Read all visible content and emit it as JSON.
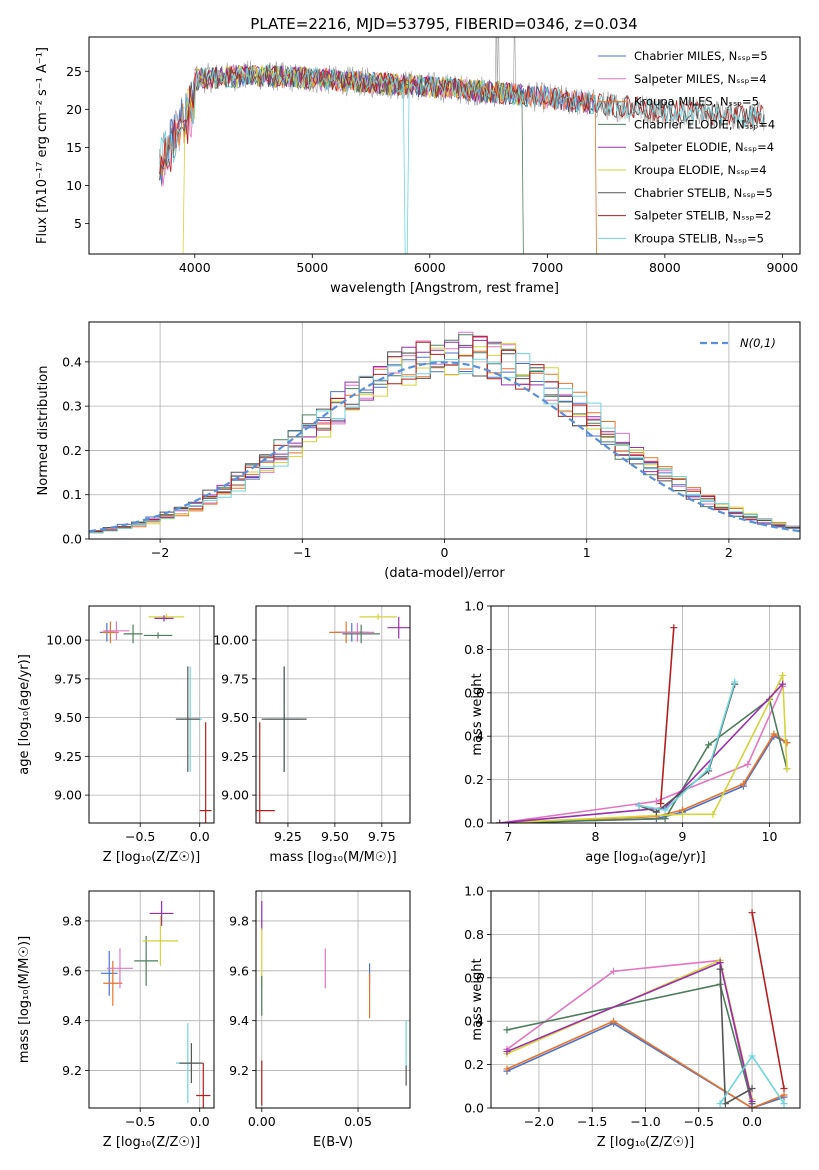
{
  "figure": {
    "title": "PLATE=2216, MJD=53795, FIBERID=0346, z=0.034"
  },
  "chart_data": [
    {
      "id": "spectrum",
      "type": "line",
      "xlabel": "wavelength [Angstrom, rest frame]",
      "ylabel": "Flux [fλ10⁻¹⁷ erg cm⁻² s⁻¹ A⁻¹]",
      "xlim": [
        3100,
        9150
      ],
      "ylim": [
        1,
        29.5
      ],
      "xticks": [
        4000,
        5000,
        6000,
        7000,
        8000,
        9000
      ],
      "yticks": [
        5,
        10,
        15,
        20,
        25
      ],
      "legend_position": "top-right",
      "observed_color": "#aaaaaa",
      "series": [
        {
          "name": "Chabrier MILES, N_SSP=5",
          "color": "#4c72d0",
          "range": [
            3700,
            7400
          ]
        },
        {
          "name": "Salpeter MILES, N_SSP=4",
          "color": "#e377c2",
          "range": [
            3700,
            7400
          ]
        },
        {
          "name": "Kroupa MILES, N_SSP=5",
          "color": "#e8742a",
          "range": [
            3700,
            7430
          ]
        },
        {
          "name": "Chabrier ELODIE, N_SSP=4",
          "color": "#4e7d5e",
          "range": [
            4000,
            6800
          ]
        },
        {
          "name": "Salpeter ELODIE, N_SSP=4",
          "color": "#9b2fb0",
          "range": [
            4000,
            6800
          ]
        },
        {
          "name": "Kroupa ELODIE, N_SSP=4",
          "color": "#d4d43c",
          "range": [
            3900,
            6800
          ]
        },
        {
          "name": "Chabrier STELIB, N_SSP=5",
          "color": "#555555",
          "range": [
            3700,
            8850
          ]
        },
        {
          "name": "Salpeter STELIB, N_SSP=2",
          "color": "#b41f1f",
          "range": [
            3700,
            8850
          ]
        },
        {
          "name": "Kroupa STELIB, N_SSP=5",
          "color": "#6fd6dc",
          "range": [
            3700,
            8850
          ]
        }
      ],
      "continuum": [
        [
          3700,
          16
        ],
        [
          4000,
          24
        ],
        [
          4500,
          24.5
        ],
        [
          5000,
          24
        ],
        [
          5500,
          23.5
        ],
        [
          6000,
          23
        ],
        [
          6500,
          22.3
        ],
        [
          7000,
          21.5
        ],
        [
          7500,
          20.5
        ],
        [
          8000,
          19.8
        ],
        [
          8500,
          19.3
        ],
        [
          8850,
          19
        ]
      ]
    },
    {
      "id": "residuals",
      "type": "histogram",
      "xlabel": "(data-model)/error",
      "ylabel": "Normed distribution",
      "xlim": [
        -2.5,
        2.5
      ],
      "ylim": [
        0,
        0.49
      ],
      "xticks": [
        -2,
        -1,
        0,
        1,
        2
      ],
      "yticks": [
        0.0,
        0.1,
        0.2,
        0.3,
        0.4
      ],
      "grid": true,
      "legend_position": "top-right",
      "reference": {
        "name": "N(0,1)",
        "color": "#5b8fd6"
      },
      "bin_width": 0.1
    },
    {
      "id": "age-vs-z",
      "type": "errorbar",
      "xlabel": "Z [log₁₀(Z/Z☉)]",
      "ylabel": "age  [log₁₀(age/yr)]",
      "xlim": [
        -0.93,
        0.12
      ],
      "ylim": [
        8.82,
        10.22
      ],
      "xticks": [
        -0.5,
        0.0
      ],
      "yticks": [
        9.0,
        9.25,
        9.5,
        9.75,
        10.0
      ],
      "grid": true,
      "points": [
        {
          "x": -0.78,
          "y": 10.05,
          "xerr": 0.06,
          "yerr": 0.06,
          "color": "#4c72d0"
        },
        {
          "x": -0.75,
          "y": 10.05,
          "xerr": 0.07,
          "yerr": 0.07,
          "color": "#e8742a"
        },
        {
          "x": -0.7,
          "y": 10.06,
          "xerr": 0.11,
          "yerr": 0.06,
          "color": "#e377c2"
        },
        {
          "x": -0.56,
          "y": 10.04,
          "xerr": 0.08,
          "yerr": 0.06,
          "color": "#4e7d5e"
        },
        {
          "x": -0.28,
          "y": 10.15,
          "xerr": 0.15,
          "yerr": 0.02,
          "color": "#d4d43c"
        },
        {
          "x": -0.35,
          "y": 10.03,
          "xerr": 0.12,
          "yerr": 0.02,
          "color": "#4e7d5e"
        },
        {
          "x": -0.3,
          "y": 10.14,
          "xerr": 0.08,
          "yerr": 0.02,
          "color": "#9b2fb0"
        },
        {
          "x": -0.08,
          "y": 9.49,
          "xerr": 0.1,
          "yerr": 0.34,
          "color": "#6fd6dc"
        },
        {
          "x": -0.1,
          "y": 9.49,
          "xerr": 0.1,
          "yerr": 0.34,
          "color": "#555555"
        },
        {
          "x": 0.05,
          "y": 8.9,
          "xerr": 0.05,
          "yerr": 0.57,
          "color": "#b41f1f"
        }
      ]
    },
    {
      "id": "age-vs-mass",
      "type": "errorbar",
      "xlabel": "mass [log₁₀(M/M☉)]",
      "ylabel": "",
      "xlim": [
        9.08,
        9.9
      ],
      "ylim": [
        8.82,
        10.22
      ],
      "xticks": [
        9.25,
        9.5,
        9.75
      ],
      "yticks": [
        9.0,
        9.25,
        9.5,
        9.75,
        10.0
      ],
      "grid": true,
      "points": [
        {
          "x": 9.59,
          "y": 10.05,
          "xerr": 0.09,
          "yerr": 0.06,
          "color": "#4c72d0"
        },
        {
          "x": 9.56,
          "y": 10.05,
          "xerr": 0.09,
          "yerr": 0.07,
          "color": "#e8742a"
        },
        {
          "x": 9.62,
          "y": 10.05,
          "xerr": 0.09,
          "yerr": 0.06,
          "color": "#e377c2"
        },
        {
          "x": 9.64,
          "y": 10.04,
          "xerr": 0.1,
          "yerr": 0.06,
          "color": "#4e7d5e"
        },
        {
          "x": 9.73,
          "y": 10.15,
          "xerr": 0.1,
          "yerr": 0.02,
          "color": "#d4d43c"
        },
        {
          "x": 9.84,
          "y": 10.08,
          "xerr": 0.06,
          "yerr": 0.07,
          "color": "#9b2fb0"
        },
        {
          "x": 9.23,
          "y": 9.49,
          "xerr": 0.1,
          "yerr": 0.34,
          "color": "#6fd6dc"
        },
        {
          "x": 9.23,
          "y": 9.49,
          "xerr": 0.12,
          "yerr": 0.34,
          "color": "#555555"
        },
        {
          "x": 9.1,
          "y": 8.9,
          "xerr": 0.08,
          "yerr": 0.57,
          "color": "#b41f1f"
        }
      ]
    },
    {
      "id": "weight-vs-age",
      "type": "line",
      "xlabel": "age  [log₁₀(age/yr)]",
      "ylabel": "mass weight",
      "xlim": [
        6.8,
        10.35
      ],
      "ylim": [
        0,
        1.0
      ],
      "xticks": [
        7,
        8,
        9,
        10
      ],
      "yticks": [
        0.0,
        0.2,
        0.4,
        0.6,
        0.8,
        1.0
      ],
      "grid": true,
      "series": [
        {
          "color": "#4c72d0",
          "points": [
            [
              6.9,
              0.0
            ],
            [
              8.7,
              0.02
            ],
            [
              9.0,
              0.05
            ],
            [
              9.7,
              0.17
            ],
            [
              10.05,
              0.4
            ],
            [
              10.2,
              0.37
            ]
          ]
        },
        {
          "color": "#e8742a",
          "points": [
            [
              6.9,
              0.0
            ],
            [
              8.7,
              0.03
            ],
            [
              9.0,
              0.06
            ],
            [
              9.7,
              0.18
            ],
            [
              10.05,
              0.41
            ],
            [
              10.2,
              0.37
            ]
          ]
        },
        {
          "color": "#e377c2",
          "points": [
            [
              6.9,
              0.0
            ],
            [
              8.7,
              0.1
            ],
            [
              9.75,
              0.27
            ],
            [
              10.15,
              0.63
            ]
          ]
        },
        {
          "color": "#4e7d5e",
          "points": [
            [
              6.9,
              0.0
            ],
            [
              8.8,
              0.02
            ],
            [
              9.3,
              0.36
            ],
            [
              10.0,
              0.57
            ],
            [
              10.2,
              0.25
            ]
          ]
        },
        {
          "color": "#d4d43c",
          "points": [
            [
              6.9,
              0.0
            ],
            [
              9.0,
              0.04
            ],
            [
              9.35,
              0.04
            ],
            [
              10.15,
              0.68
            ],
            [
              10.2,
              0.25
            ]
          ]
        },
        {
          "color": "#9b2fb0",
          "points": [
            [
              6.9,
              0.0
            ],
            [
              8.8,
              0.07
            ],
            [
              10.15,
              0.64
            ]
          ]
        },
        {
          "color": "#555555",
          "points": [
            [
              8.5,
              0.08
            ],
            [
              8.7,
              0.05
            ],
            [
              9.3,
              0.24
            ],
            [
              9.6,
              0.64
            ]
          ]
        },
        {
          "color": "#b41f1f",
          "points": [
            [
              8.75,
              0.09
            ],
            [
              8.9,
              0.9
            ]
          ]
        },
        {
          "color": "#6fd6dc",
          "points": [
            [
              8.5,
              0.08
            ],
            [
              8.8,
              0.06
            ],
            [
              9.3,
              0.25
            ],
            [
              9.6,
              0.65
            ]
          ]
        }
      ]
    },
    {
      "id": "mass-vs-z",
      "type": "errorbar",
      "xlabel": "Z [log₁₀(Z/Z☉)]",
      "ylabel": "mass [log₁₀(M/M☉)]",
      "xlim": [
        -0.93,
        0.12
      ],
      "ylim": [
        9.05,
        9.92
      ],
      "xticks": [
        -0.5,
        0.0
      ],
      "yticks": [
        9.2,
        9.4,
        9.6,
        9.8
      ],
      "grid": true,
      "points": [
        {
          "x": -0.76,
          "y": 9.59,
          "xerr": 0.07,
          "yerr": 0.09,
          "color": "#4c72d0"
        },
        {
          "x": -0.73,
          "y": 9.55,
          "xerr": 0.08,
          "yerr": 0.09,
          "color": "#e8742a"
        },
        {
          "x": -0.67,
          "y": 9.61,
          "xerr": 0.11,
          "yerr": 0.08,
          "color": "#e377c2"
        },
        {
          "x": -0.45,
          "y": 9.64,
          "xerr": 0.1,
          "yerr": 0.1,
          "color": "#4e7d5e"
        },
        {
          "x": -0.33,
          "y": 9.72,
          "xerr": 0.15,
          "yerr": 0.1,
          "color": "#d4d43c"
        },
        {
          "x": -0.32,
          "y": 9.83,
          "xerr": 0.1,
          "yerr": 0.05,
          "color": "#9b2fb0"
        },
        {
          "x": -0.1,
          "y": 9.23,
          "xerr": 0.1,
          "yerr": 0.16,
          "color": "#6fd6dc"
        },
        {
          "x": -0.07,
          "y": 9.23,
          "xerr": 0.1,
          "yerr": 0.08,
          "color": "#555555"
        },
        {
          "x": 0.03,
          "y": 9.1,
          "xerr": 0.06,
          "yerr": 0.13,
          "color": "#b41f1f"
        }
      ]
    },
    {
      "id": "mass-vs-ebv",
      "type": "errorbar",
      "xlabel": "E(B-V)",
      "ylabel": "",
      "xlim": [
        -0.003,
        0.077
      ],
      "ylim": [
        9.05,
        9.92
      ],
      "xticks": [
        0.0,
        0.05
      ],
      "yticks": [
        9.2,
        9.4,
        9.6,
        9.8
      ],
      "grid": true,
      "points": [
        {
          "x": 0.0,
          "y": 9.82,
          "xerr": 0.0,
          "yerr": 0.06,
          "color": "#9b2fb0"
        },
        {
          "x": 0.0,
          "y": 9.65,
          "xerr": 0.0,
          "yerr": 0.12,
          "color": "#d4d43c"
        },
        {
          "x": 0.0,
          "y": 9.5,
          "xerr": 0.0,
          "yerr": 0.08,
          "color": "#4e7d5e"
        },
        {
          "x": 0.0,
          "y": 9.15,
          "xerr": 0.0,
          "yerr": 0.09,
          "color": "#b41f1f"
        },
        {
          "x": 0.033,
          "y": 9.61,
          "xerr": 0.0,
          "yerr": 0.08,
          "color": "#e377c2"
        },
        {
          "x": 0.056,
          "y": 9.59,
          "xerr": 0.0,
          "yerr": 0.04,
          "color": "#4c72d0"
        },
        {
          "x": 0.056,
          "y": 9.5,
          "xerr": 0.0,
          "yerr": 0.09,
          "color": "#e8742a"
        },
        {
          "x": 0.075,
          "y": 9.3,
          "xerr": 0.0,
          "yerr": 0.1,
          "color": "#6fd6dc"
        },
        {
          "x": 0.075,
          "y": 9.18,
          "xerr": 0.0,
          "yerr": 0.04,
          "color": "#555555"
        }
      ]
    },
    {
      "id": "weight-vs-z",
      "type": "line",
      "xlabel": "Z [log₁₀(Z/Z☉)]",
      "ylabel": "mass weight",
      "xlim": [
        -2.45,
        0.45
      ],
      "ylim": [
        0,
        1.0
      ],
      "xticks": [
        -2.0,
        -1.5,
        -1.0,
        -0.5,
        0.0
      ],
      "yticks": [
        0.0,
        0.2,
        0.4,
        0.6,
        0.8,
        1.0
      ],
      "grid": true,
      "series": [
        {
          "color": "#4c72d0",
          "points": [
            [
              -2.3,
              0.17
            ],
            [
              -1.3,
              0.39
            ],
            [
              0.0,
              0.0
            ],
            [
              0.3,
              0.05
            ]
          ]
        },
        {
          "color": "#e8742a",
          "points": [
            [
              -2.3,
              0.18
            ],
            [
              -1.3,
              0.4
            ],
            [
              0.0,
              0.0
            ],
            [
              0.3,
              0.06
            ]
          ]
        },
        {
          "color": "#e377c2",
          "points": [
            [
              -2.3,
              0.27
            ],
            [
              -1.3,
              0.63
            ],
            [
              -0.3,
              0.68
            ],
            [
              0.0,
              0.0
            ]
          ]
        },
        {
          "color": "#4e7d5e",
          "points": [
            [
              -2.3,
              0.36
            ],
            [
              -0.3,
              0.57
            ],
            [
              0.0,
              0.02
            ]
          ]
        },
        {
          "color": "#d4d43c",
          "points": [
            [
              -2.3,
              0.25
            ],
            [
              -0.3,
              0.68
            ],
            [
              0.0,
              0.04
            ]
          ]
        },
        {
          "color": "#9b2fb0",
          "points": [
            [
              -2.3,
              0.26
            ],
            [
              -0.3,
              0.67
            ],
            [
              0.0,
              0.03
            ]
          ]
        },
        {
          "color": "#555555",
          "points": [
            [
              -0.3,
              0.64
            ],
            [
              -0.25,
              0.02
            ],
            [
              0.0,
              0.09
            ]
          ]
        },
        {
          "color": "#b41f1f",
          "points": [
            [
              0.0,
              0.9
            ],
            [
              0.3,
              0.09
            ]
          ]
        },
        {
          "color": "#6fd6dc",
          "points": [
            [
              -0.3,
              0.02
            ],
            [
              0.0,
              0.24
            ],
            [
              0.3,
              0.02
            ]
          ]
        }
      ]
    }
  ]
}
